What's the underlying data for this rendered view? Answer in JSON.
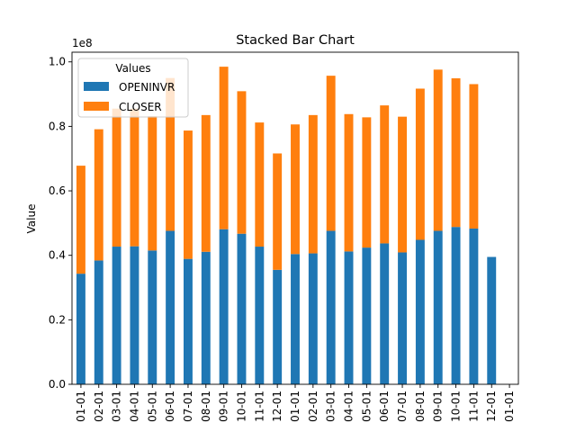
{
  "chart_data": {
    "type": "bar",
    "stacked": true,
    "title": "Stacked Bar Chart",
    "xlabel": "",
    "ylabel": "Value",
    "y_scale_label": "1e8",
    "y_multiplier": 100000000,
    "ylim": [
      0,
      1.03
    ],
    "y_ticks": [
      0.0,
      0.2,
      0.4,
      0.6,
      0.8,
      1.0
    ],
    "y_tick_labels": [
      "0.0",
      "0.2",
      "0.4",
      "0.6",
      "0.8",
      "1.0"
    ],
    "grid": false,
    "legend": {
      "title": "Values",
      "placement": "top-left"
    },
    "categories": [
      "01-01",
      "02-01",
      "03-01",
      "04-01",
      "05-01",
      "06-01",
      "07-01",
      "08-01",
      "09-01",
      "10-01",
      "11-01",
      "12-01",
      "01-01",
      "02-01",
      "03-01",
      "04-01",
      "05-01",
      "06-01",
      "07-01",
      "08-01",
      "09-01",
      "10-01",
      "11-01",
      "12-01",
      "01-01"
    ],
    "series": [
      {
        "name": "OPENINVR",
        "color": "#1f77b4",
        "values": [
          0.343,
          0.384,
          0.427,
          0.428,
          0.415,
          0.476,
          0.389,
          0.411,
          0.481,
          0.467,
          0.427,
          0.355,
          0.404,
          0.406,
          0.476,
          0.412,
          0.424,
          0.437,
          0.409,
          0.448,
          0.476,
          0.488,
          0.483,
          0.395,
          0.0
        ]
      },
      {
        "name": "CLOSER",
        "color": "#ff7f0e",
        "values": [
          0.335,
          0.407,
          0.428,
          0.427,
          0.417,
          0.474,
          0.398,
          0.424,
          0.504,
          0.442,
          0.385,
          0.361,
          0.402,
          0.429,
          0.481,
          0.426,
          0.404,
          0.428,
          0.421,
          0.469,
          0.5,
          0.461,
          0.448,
          0.0,
          0.0
        ]
      }
    ]
  }
}
